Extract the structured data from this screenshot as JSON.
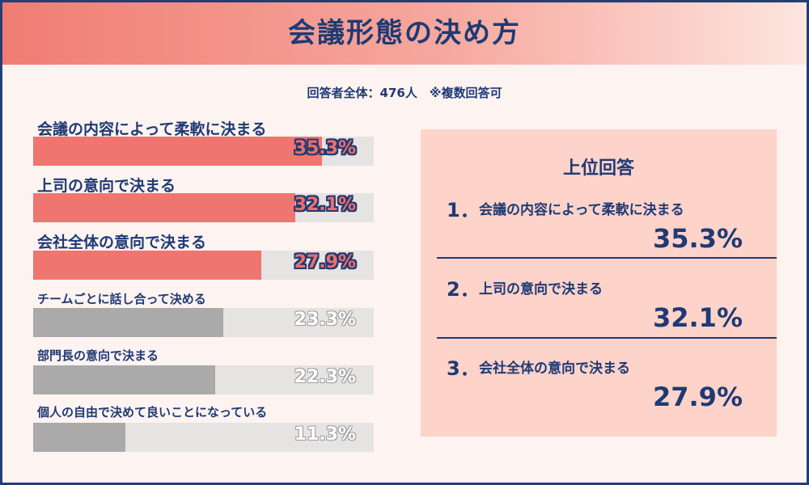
{
  "title": "会議形態の決め方",
  "subtitle": "回答者全体：476人　※複数回答可",
  "chart_data": {
    "type": "bar",
    "orientation": "horizontal",
    "title": "会議形態の決め方",
    "subtitle": "回答者全体：476人　※複数回答可",
    "xlim": [
      0,
      100
    ],
    "unit": "%",
    "categories": [
      "会議の内容によって柔軟に決まる",
      "上司の意向で決まる",
      "会社全体の意向で決まる",
      "チームごとに話し合って決める",
      "部門長の意向で決まる",
      "個人の自由で決めて良いことになっている"
    ],
    "values": [
      35.3,
      32.1,
      27.9,
      23.3,
      22.3,
      11.3
    ],
    "value_labels": [
      "35.3%",
      "32.1%",
      "27.9%",
      "23.3%",
      "22.3%",
      "11.3%"
    ],
    "highlight_count": 3,
    "colors": {
      "highlight": "#ef7670",
      "normal": "#aaaaaa",
      "track": "#e6e3e3"
    }
  },
  "top_answers": {
    "heading": "上位回答",
    "items": [
      {
        "rank": "1．",
        "label": "会議の内容によって柔軟に決まる",
        "value": "35.3%"
      },
      {
        "rank": "2．",
        "label": "上司の意向で決まる",
        "value": "32.1%"
      },
      {
        "rank": "3．",
        "label": "会社全体の意向で決まる",
        "value": "27.9%"
      }
    ]
  }
}
